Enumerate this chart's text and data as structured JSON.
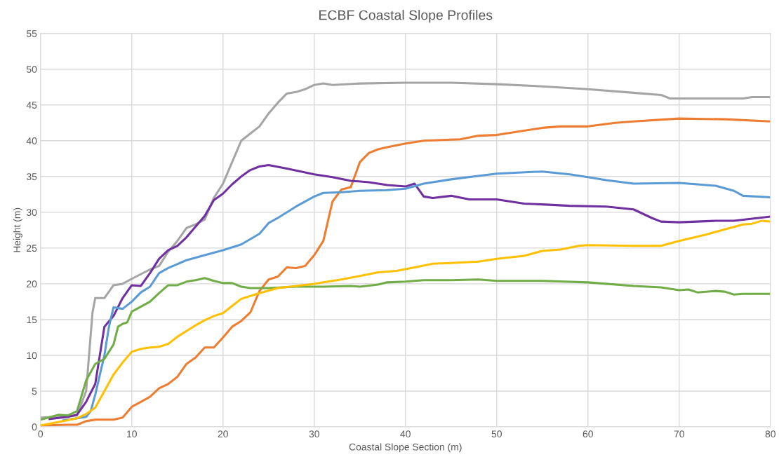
{
  "chart_data": {
    "type": "line",
    "title": "ECBF Coastal Slope Profiles",
    "xlabel": "Coastal Slope Section (m)",
    "ylabel": "Height (m)",
    "xlim": [
      0,
      80
    ],
    "xticks": [
      0,
      10,
      20,
      30,
      40,
      50,
      60,
      70,
      80
    ],
    "ylim": [
      0,
      55
    ],
    "yticks": [
      0,
      5,
      10,
      15,
      20,
      25,
      30,
      35,
      40,
      45,
      50,
      55
    ],
    "grid": true,
    "marker": "none",
    "line_style": "solid",
    "series": [
      {
        "color": "#a5a5a5",
        "x": [
          0,
          2,
          3,
          4,
          5,
          5.7,
          6,
          7,
          8,
          9,
          10,
          12,
          13,
          14,
          15,
          16,
          17,
          18,
          19,
          20,
          21,
          22,
          23,
          24,
          25,
          26,
          27,
          28,
          29,
          30,
          31,
          32,
          35,
          40,
          45,
          50,
          55,
          60,
          65,
          68,
          69,
          70,
          75,
          77,
          78,
          80
        ],
        "values": [
          1.3,
          1.4,
          1.5,
          1.6,
          5,
          16,
          18,
          18,
          19.8,
          20,
          20.7,
          22,
          22.5,
          24.5,
          26,
          27.8,
          28.3,
          29,
          32,
          34,
          37,
          40,
          41,
          42,
          43.8,
          45.3,
          46.6,
          46.8,
          47.2,
          47.8,
          48,
          47.8,
          48,
          48.1,
          48.1,
          47.9,
          47.6,
          47.2,
          46.7,
          46.4,
          45.9,
          45.9,
          45.9,
          45.9,
          46.1,
          46.1
        ]
      },
      {
        "color": "#ed7d31",
        "x": [
          0,
          3,
          4,
          5,
          6,
          7,
          8,
          9,
          10,
          11,
          12,
          13,
          14,
          15,
          16,
          17,
          18,
          19,
          20,
          21,
          22,
          23,
          24,
          25,
          26,
          27,
          28,
          29,
          30,
          31,
          32,
          33,
          34,
          35,
          36,
          37,
          38,
          40,
          42,
          46,
          48,
          50,
          55,
          57,
          60,
          63,
          65,
          70,
          75,
          80
        ],
        "values": [
          0.2,
          0.3,
          0.3,
          0.8,
          1,
          1,
          1,
          1.3,
          2.8,
          3.5,
          4.2,
          5.4,
          6,
          7,
          8.8,
          9.7,
          11.1,
          11.1,
          12.5,
          14,
          14.8,
          16,
          19,
          20.6,
          21,
          22.3,
          22.2,
          22.5,
          24,
          26,
          31.5,
          33.2,
          33.5,
          37,
          38.3,
          38.8,
          39.1,
          39.6,
          40,
          40.2,
          40.7,
          40.8,
          41.8,
          42,
          42,
          42.5,
          42.7,
          43.1,
          43,
          42.7
        ]
      },
      {
        "color": "#7030a0",
        "x": [
          1,
          3,
          4,
          5,
          6,
          6.5,
          7,
          8,
          9,
          10,
          11,
          12,
          13,
          14,
          15,
          16,
          17,
          18,
          19,
          20,
          21,
          22,
          23,
          24,
          25,
          27,
          30,
          32,
          34,
          36,
          38,
          40,
          41,
          42,
          43,
          45,
          47,
          50,
          53,
          55,
          58,
          62,
          65,
          67,
          68,
          70,
          74,
          76,
          78,
          80
        ],
        "values": [
          1.1,
          1.4,
          1.7,
          3.5,
          6,
          10,
          14,
          15.5,
          18,
          19.8,
          19.7,
          21.5,
          23.5,
          24.7,
          25.3,
          26.5,
          28,
          29.5,
          31.7,
          32.6,
          33.9,
          35,
          35.9,
          36.4,
          36.6,
          36.1,
          35.3,
          34.9,
          34.4,
          34.2,
          33.8,
          33.6,
          34,
          32.2,
          32,
          32.3,
          31.8,
          31.8,
          31.2,
          31.1,
          30.9,
          30.8,
          30.4,
          29.2,
          28.7,
          28.6,
          28.8,
          28.8,
          29.1,
          29.4
        ]
      },
      {
        "color": "#5b9bd5",
        "x": [
          2.5,
          5,
          5.5,
          6,
          7,
          7.5,
          8,
          9,
          10,
          11,
          12,
          13,
          14,
          16,
          18,
          20,
          22,
          24,
          25,
          26,
          28,
          30,
          31,
          33,
          35,
          38,
          40,
          42,
          45,
          50,
          55,
          58,
          60,
          62,
          65,
          70,
          72,
          74,
          76,
          77,
          80
        ],
        "values": [
          0.9,
          1.4,
          2.2,
          4.5,
          10,
          14,
          16.7,
          16.5,
          17.5,
          18.8,
          19.6,
          21.5,
          22.2,
          23.3,
          24,
          24.7,
          25.5,
          27,
          28.5,
          29.2,
          30.8,
          32.2,
          32.7,
          32.8,
          33,
          33.1,
          33.3,
          34,
          34.6,
          35.4,
          35.7,
          35.3,
          34.9,
          34.5,
          34,
          34.1,
          33.9,
          33.7,
          33,
          32.3,
          32.1
        ]
      },
      {
        "color": "#70ad47",
        "x": [
          0,
          2,
          3,
          4,
          5,
          6,
          7,
          8,
          8.5,
          9,
          9.5,
          10,
          12,
          13,
          14,
          15,
          16,
          17,
          18,
          19,
          20,
          21,
          22,
          23,
          25,
          28,
          31,
          34,
          35,
          37,
          38,
          40,
          42,
          45,
          48,
          50,
          55,
          60,
          65,
          68,
          70,
          71,
          72,
          74,
          75,
          76,
          77,
          80
        ],
        "values": [
          1,
          1.7,
          1.6,
          2.2,
          6.5,
          8.8,
          9.5,
          11.5,
          14,
          14.4,
          14.6,
          16.1,
          17.5,
          18.7,
          19.8,
          19.8,
          20.3,
          20.5,
          20.8,
          20.4,
          20.1,
          20.1,
          19.6,
          19.4,
          19.4,
          19.6,
          19.6,
          19.7,
          19.6,
          19.9,
          20.2,
          20.3,
          20.5,
          20.5,
          20.6,
          20.4,
          20.4,
          20.2,
          19.7,
          19.5,
          19.1,
          19.2,
          18.8,
          19,
          18.9,
          18.5,
          18.6,
          18.6
        ]
      },
      {
        "color": "#ffc000",
        "x": [
          0,
          2,
          4,
          5,
          6,
          7,
          8,
          9,
          10,
          11,
          12,
          13,
          14,
          15,
          16,
          17,
          18,
          19,
          20,
          21,
          22,
          24,
          26,
          28,
          30,
          31,
          33,
          35,
          37,
          39,
          41,
          43,
          45,
          48,
          50,
          53,
          55,
          57,
          59,
          60,
          65,
          68,
          70,
          73,
          75,
          77,
          78,
          79,
          80
        ],
        "values": [
          0.2,
          0.7,
          1.2,
          1.8,
          2.7,
          5,
          7.3,
          9,
          10.5,
          10.9,
          11.1,
          11.2,
          11.6,
          12.6,
          13.4,
          14.2,
          14.9,
          15.5,
          15.9,
          16.9,
          17.9,
          18.7,
          19.4,
          19.7,
          20,
          20.2,
          20.6,
          21.1,
          21.6,
          21.8,
          22.3,
          22.8,
          22.9,
          23.1,
          23.5,
          23.9,
          24.6,
          24.8,
          25.3,
          25.4,
          25.3,
          25.3,
          26,
          26.9,
          27.6,
          28.3,
          28.4,
          28.8,
          28.7
        ]
      }
    ]
  }
}
